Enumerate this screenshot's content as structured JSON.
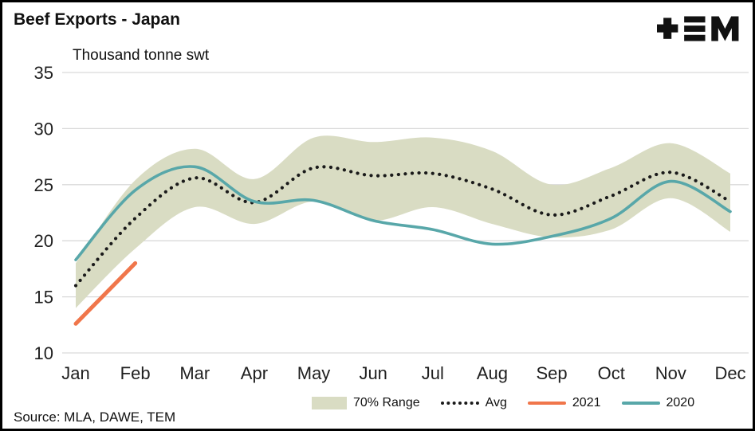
{
  "header": {
    "title": "Beef Exports - Japan",
    "subtitle": "Thousand tonne swt"
  },
  "source_note": "Source: MLA, DAWE, TEM",
  "legend": [
    {
      "label": "70% Range"
    },
    {
      "label": "Avg"
    },
    {
      "label": "2021"
    },
    {
      "label": "2020"
    }
  ],
  "colors": {
    "band": "#d9dcc3",
    "avg": "#1a1a1a",
    "y2021": "#f0764b",
    "y2020": "#58a7a9",
    "grid": "#d9d9d9",
    "axis_text": "#1f1f1f",
    "logo": "#111111"
  },
  "chart_data": {
    "type": "line",
    "title": "Beef Exports - Japan",
    "ylabel": "Thousand tonne swt",
    "categories": [
      "Jan",
      "Feb",
      "Mar",
      "Apr",
      "May",
      "Jun",
      "Jul",
      "Aug",
      "Sep",
      "Oct",
      "Nov",
      "Dec"
    ],
    "ylim": [
      10,
      35
    ],
    "yticks": [
      10,
      15,
      20,
      25,
      30,
      35
    ],
    "grid": "horizontal",
    "legend_position": "bottom",
    "band": {
      "name": "70% Range",
      "upper": [
        18.0,
        25.4,
        28.2,
        25.5,
        29.2,
        28.8,
        29.2,
        28.0,
        25.0,
        26.5,
        28.7,
        26.0
      ],
      "lower": [
        14.0,
        19.3,
        23.0,
        21.5,
        23.5,
        21.8,
        23.0,
        21.5,
        20.3,
        21.0,
        23.8,
        20.8
      ]
    },
    "series": [
      {
        "name": "Avg",
        "style": "dotted",
        "values": [
          16.0,
          22.0,
          25.6,
          23.4,
          26.5,
          25.8,
          26.0,
          24.6,
          22.3,
          24.0,
          26.1,
          23.5
        ]
      },
      {
        "name": "2021",
        "style": "solid",
        "values": [
          12.6,
          18.0,
          null,
          null,
          null,
          null,
          null,
          null,
          null,
          null,
          null,
          null
        ]
      },
      {
        "name": "2020",
        "style": "solid",
        "values": [
          18.3,
          24.5,
          26.6,
          23.5,
          23.6,
          21.8,
          21.0,
          19.7,
          20.4,
          22.0,
          25.3,
          22.6
        ]
      }
    ]
  }
}
